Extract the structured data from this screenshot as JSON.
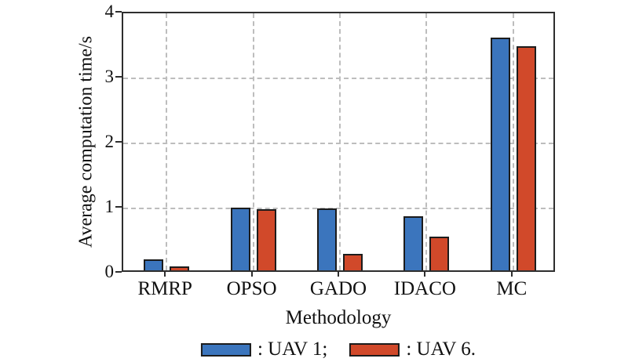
{
  "chart_data": {
    "type": "bar",
    "categories": [
      "RMRP",
      "OPSO",
      "GADO",
      "IDACO",
      "MC"
    ],
    "series": [
      {
        "name": "UAV 1",
        "color": "#3B75BD",
        "values": [
          0.17,
          0.97,
          0.95,
          0.83,
          3.58
        ]
      },
      {
        "name": "UAV 6",
        "color": "#D1492A",
        "values": [
          0.06,
          0.94,
          0.25,
          0.52,
          3.45
        ]
      }
    ],
    "title": "",
    "xlabel": "Methodology",
    "ylabel": "Average computation time/s",
    "ylim": [
      0,
      4
    ],
    "yticks": [
      0,
      1,
      2,
      3,
      4
    ],
    "grid": "dashed horizontal at 1,2,3 and vertical at each category center",
    "legend_position": "bottom",
    "legend_labels": [
      ": UAV 1;",
      ": UAV 6."
    ]
  }
}
